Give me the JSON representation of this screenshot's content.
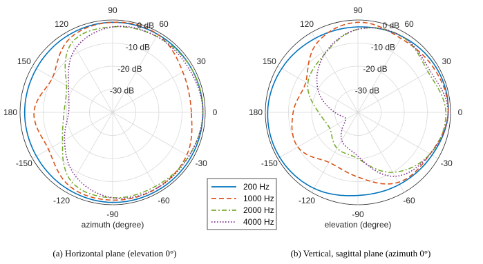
{
  "chart_data": [
    {
      "type": "polar-line",
      "caption": "(a) Horizontal plane (elevation 0°)",
      "axis_label": "azimuth (degree)",
      "angle_tick_labels": [
        "0",
        "30",
        "60",
        "90",
        "120",
        "150",
        "180",
        "-150",
        "-120",
        "-90",
        "-60",
        "-30"
      ],
      "radial_tick_labels": [
        "0 dB",
        "-10 dB",
        "-20 dB",
        "-30 dB"
      ],
      "rlim_db": [
        -40,
        0
      ],
      "grid": true,
      "angles_deg": [
        0,
        30,
        60,
        90,
        120,
        150,
        180,
        210,
        240,
        270,
        300,
        330
      ],
      "series": [
        {
          "name": "200 Hz",
          "color": "#0072BD",
          "dash": "solid",
          "values_db": [
            -1,
            -1,
            -1,
            -1,
            -1.5,
            -2,
            -2,
            -2,
            -1.5,
            -1,
            -1,
            -1
          ]
        },
        {
          "name": "1000 Hz",
          "color": "#D95319",
          "dash": "dashed",
          "values_db": [
            -6,
            -5,
            -1,
            -1,
            -3,
            -10,
            -6,
            -8,
            -3,
            -2,
            -2,
            -3
          ]
        },
        {
          "name": "2000 Hz",
          "color": "#77AC30",
          "dash": "dashdot",
          "values_db": [
            -1,
            -1,
            -2,
            -3,
            -5,
            -17,
            -19,
            -15,
            -5,
            -3,
            -3,
            -2
          ]
        },
        {
          "name": "4000 Hz",
          "color": "#7E2F8E",
          "dash": "dotted",
          "values_db": [
            -1,
            -2,
            -2,
            -3,
            -8,
            -18,
            -21,
            -16,
            -8,
            -3,
            -2,
            -2
          ]
        }
      ]
    },
    {
      "type": "polar-line",
      "caption": "(b) Vertical, sagittal plane (azimuth 0°)",
      "axis_label": "elevation (degree)",
      "angle_tick_labels": [
        "0",
        "30",
        "60",
        "90",
        "120",
        "150",
        "180",
        "-150",
        "-120",
        "-90",
        "-60",
        "-30"
      ],
      "radial_tick_labels": [
        "0 dB",
        "-10 dB",
        "-20 dB",
        "-30 dB"
      ],
      "rlim_db": [
        -40,
        0
      ],
      "grid": true,
      "angles_deg": [
        0,
        30,
        60,
        90,
        120,
        150,
        180,
        210,
        240,
        270,
        300,
        330
      ],
      "series": [
        {
          "name": "200 Hz",
          "color": "#0072BD",
          "dash": "solid",
          "values_db": [
            -1,
            -1,
            -2,
            -3,
            -3,
            -2,
            -1,
            -1,
            -2,
            -4,
            -4,
            -3
          ]
        },
        {
          "name": "1000 Hz",
          "color": "#D95319",
          "dash": "dashed",
          "values_db": [
            -1,
            -2,
            -3,
            -1,
            -5,
            -14,
            -12,
            -10,
            -15,
            -12,
            -5,
            -4
          ]
        },
        {
          "name": "2000 Hz",
          "color": "#77AC30",
          "dash": "dashdot",
          "values_db": [
            -2,
            -5,
            -2,
            -4,
            -11,
            -15,
            -23,
            -26,
            -22,
            -20,
            -10,
            -4
          ]
        },
        {
          "name": "4000 Hz",
          "color": "#7E2F8E",
          "dash": "dotted",
          "values_db": [
            -1,
            -4,
            -2,
            -4,
            -11,
            -20,
            -30,
            -34,
            -26,
            -21,
            -8,
            -4
          ]
        }
      ]
    }
  ],
  "legend": {
    "placement": "bottom-center",
    "entries": [
      "200 Hz",
      "1000 Hz",
      "2000 Hz",
      "4000 Hz"
    ]
  }
}
